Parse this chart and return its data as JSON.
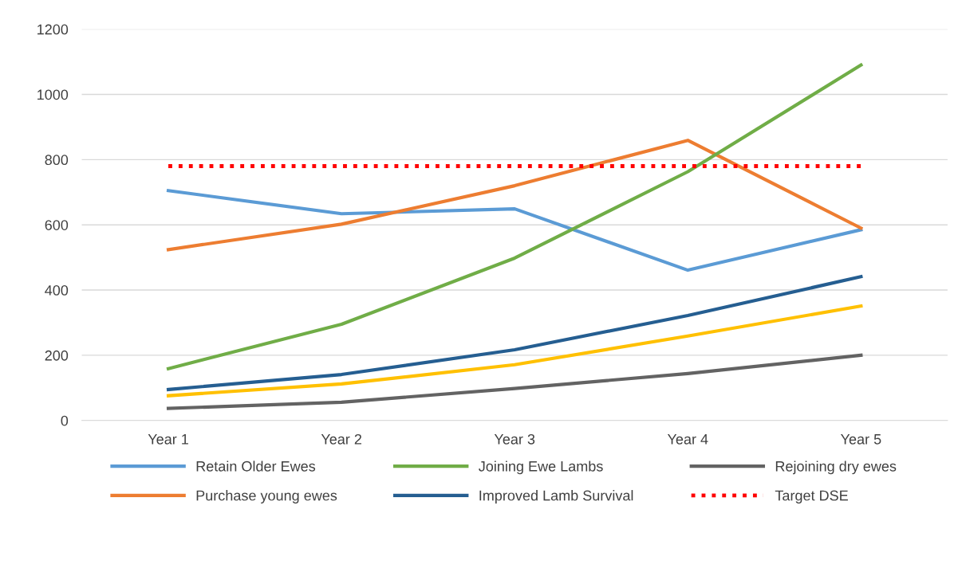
{
  "chart_data": {
    "type": "line",
    "categories": [
      "Year 1",
      "Year 2",
      "Year 3",
      "Year 4",
      "Year 5"
    ],
    "series": [
      {
        "name": "Retain Older Ewes",
        "color": "#5b9bd5",
        "values": [
          705,
          634,
          649,
          461,
          585
        ]
      },
      {
        "name": "Purchase young ewes",
        "color": "#ed7d31",
        "values": [
          524,
          602,
          720,
          859,
          590
        ]
      },
      {
        "name": "Joining Ewe Lambs",
        "color": "#70ad47",
        "values": [
          159,
          295,
          498,
          763,
          1090
        ]
      },
      {
        "name": "Improved Lamb Survival",
        "color": "#255e91",
        "values": [
          95,
          141,
          217,
          322,
          441
        ]
      },
      {
        "color": "#ffc000",
        "values": [
          76,
          112,
          171,
          259,
          351
        ]
      },
      {
        "name": "Rejoining dry ewes",
        "color": "#636363",
        "values": [
          37,
          56,
          98,
          144,
          200
        ]
      },
      {
        "name": "Target DSE",
        "color": "#ff0000",
        "line_style": "dotted",
        "values": [
          780,
          780,
          780,
          780,
          780
        ]
      }
    ],
    "ylim": [
      0,
      1200
    ],
    "yticks": [
      0,
      200,
      400,
      600,
      800,
      1000,
      1200
    ],
    "grid": "y",
    "legend": "bottom",
    "marker": "none",
    "line_style": "solid"
  }
}
